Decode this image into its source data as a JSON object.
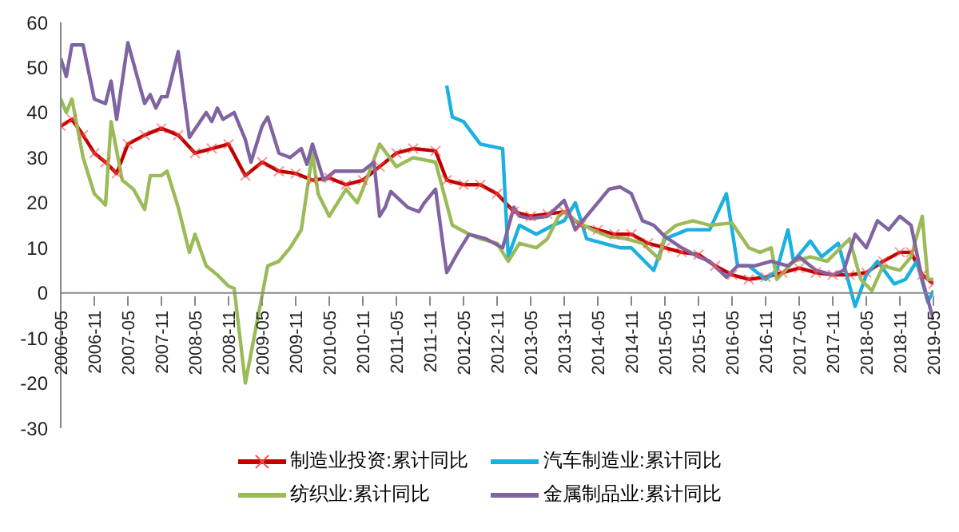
{
  "chart_data": {
    "type": "line",
    "xlim": [
      "2006-05",
      "2019-05"
    ],
    "ylim": [
      -30,
      60
    ],
    "yticks": [
      -30,
      -20,
      -10,
      0,
      10,
      20,
      30,
      40,
      50,
      60
    ],
    "xticks": [
      "2006-05",
      "2006-11",
      "2007-05",
      "2007-11",
      "2008-05",
      "2008-11",
      "2009-05",
      "2009-11",
      "2010-05",
      "2010-11",
      "2011-05",
      "2011-11",
      "2012-05",
      "2012-11",
      "2013-05",
      "2013-11",
      "2014-05",
      "2014-11",
      "2015-05",
      "2015-11",
      "2016-05",
      "2016-11",
      "2017-05",
      "2017-11",
      "2018-05",
      "2018-11",
      "2019-05"
    ],
    "legend": "bottom",
    "series": [
      {
        "name": "制造业投资:累计同比",
        "color": "#c00000",
        "marker": "cross",
        "x": [
          "2006-05",
          "2006-07",
          "2006-09",
          "2006-11",
          "2007-01",
          "2007-03",
          "2007-05",
          "2007-08",
          "2007-11",
          "2008-02",
          "2008-05",
          "2008-08",
          "2008-11",
          "2009-02",
          "2009-05",
          "2009-08",
          "2009-11",
          "2010-02",
          "2010-05",
          "2010-08",
          "2010-11",
          "2011-02",
          "2011-05",
          "2011-08",
          "2011-12",
          "2012-02",
          "2012-05",
          "2012-08",
          "2012-11",
          "2013-02",
          "2013-05",
          "2013-08",
          "2013-11",
          "2014-02",
          "2014-05",
          "2014-08",
          "2014-11",
          "2015-02",
          "2015-05",
          "2015-08",
          "2015-11",
          "2016-02",
          "2016-05",
          "2016-08",
          "2016-11",
          "2017-02",
          "2017-05",
          "2017-08",
          "2017-11",
          "2018-02",
          "2018-05",
          "2018-08",
          "2018-11",
          "2019-01",
          "2019-03",
          "2019-05"
        ],
        "values": [
          37,
          38.5,
          35,
          31,
          29,
          26.5,
          33,
          35,
          36.5,
          35,
          31,
          32,
          33,
          26,
          29,
          27,
          26.5,
          25,
          25.5,
          24,
          25,
          28,
          31,
          32,
          31.5,
          25,
          24,
          24,
          22,
          18,
          17,
          17.5,
          18,
          15,
          14,
          13,
          13,
          11,
          10,
          9,
          8.5,
          6,
          4,
          3,
          3.5,
          4.5,
          5.5,
          4.5,
          4,
          4,
          4.5,
          7,
          9,
          9,
          4,
          2
        ]
      },
      {
        "name": "汽车制造业:累计同比",
        "color": "#1ab0e0",
        "x": [
          "2012-02",
          "2012-03",
          "2012-05",
          "2012-08",
          "2012-12",
          "2013-01",
          "2013-03",
          "2013-06",
          "2013-09",
          "2013-11",
          "2014-01",
          "2014-03",
          "2014-06",
          "2014-09",
          "2014-11",
          "2015-03",
          "2015-05",
          "2015-09",
          "2016-01",
          "2016-04",
          "2016-06",
          "2016-08",
          "2016-11",
          "2017-01",
          "2017-03",
          "2017-04",
          "2017-07",
          "2017-09",
          "2017-12",
          "2018-03",
          "2018-05",
          "2018-07",
          "2018-10",
          "2018-12",
          "2019-02",
          "2019-04",
          "2019-05"
        ],
        "values": [
          46,
          39,
          38,
          33,
          32,
          8,
          15,
          13,
          15,
          16,
          20,
          12,
          11,
          10,
          10,
          5,
          12,
          14,
          14,
          22,
          6,
          6,
          3,
          5,
          14,
          7,
          11.5,
          8,
          11,
          -3,
          4,
          7,
          2,
          3,
          7,
          -2,
          0.5
        ]
      },
      {
        "name": "纺织业:累计同比",
        "color": "#9bbb59",
        "x": [
          "2006-05",
          "2006-06",
          "2006-07",
          "2006-09",
          "2006-11",
          "2007-01",
          "2007-02",
          "2007-04",
          "2007-06",
          "2007-08",
          "2007-09",
          "2007-11",
          "2007-12",
          "2008-02",
          "2008-04",
          "2008-05",
          "2008-07",
          "2008-09",
          "2008-11",
          "2008-12",
          "2009-02",
          "2009-06",
          "2009-08",
          "2009-10",
          "2009-12",
          "2010-02",
          "2010-03",
          "2010-05",
          "2010-08",
          "2010-10",
          "2010-11",
          "2011-02",
          "2011-05",
          "2011-08",
          "2011-12",
          "2012-03",
          "2012-06",
          "2012-08",
          "2012-11",
          "2013-01",
          "2013-03",
          "2013-06",
          "2013-08",
          "2013-10",
          "2013-11",
          "2014-01",
          "2014-04",
          "2014-07",
          "2014-10",
          "2015-01",
          "2015-04",
          "2015-05",
          "2015-07",
          "2015-10",
          "2016-01",
          "2016-05",
          "2016-08",
          "2016-10",
          "2016-12",
          "2017-01",
          "2017-04",
          "2017-07",
          "2017-10",
          "2018-02",
          "2018-04",
          "2018-06",
          "2018-08",
          "2018-11",
          "2019-01",
          "2019-03",
          "2019-04",
          "2019-05"
        ],
        "values": [
          43,
          40,
          43,
          30,
          22,
          19.5,
          38,
          25,
          23,
          18.5,
          26,
          26,
          27,
          19,
          9,
          13,
          6,
          4,
          1.5,
          1,
          -20,
          6,
          7,
          10,
          14,
          31,
          22,
          17,
          23,
          20,
          23,
          33,
          28,
          30,
          29,
          15,
          13,
          12,
          11,
          7,
          11,
          10,
          12,
          17,
          18,
          16,
          14,
          12.5,
          12,
          11,
          7.5,
          13,
          15,
          16,
          15,
          15.5,
          10,
          9,
          10,
          3,
          7,
          8,
          7,
          12,
          3,
          0.5,
          6,
          5,
          8,
          17,
          3,
          3
        ]
      },
      {
        "name": "金属制品业:累计同比",
        "color": "#8064a2",
        "x": [
          "2006-05",
          "2006-06",
          "2006-07",
          "2006-09",
          "2006-11",
          "2007-01",
          "2007-02",
          "2007-03",
          "2007-05",
          "2007-08",
          "2007-09",
          "2007-10",
          "2007-11",
          "2007-12",
          "2008-02",
          "2008-04",
          "2008-07",
          "2008-08",
          "2008-09",
          "2008-10",
          "2008-12",
          "2009-02",
          "2009-03",
          "2009-05",
          "2009-06",
          "2009-08",
          "2009-10",
          "2009-12",
          "2010-01",
          "2010-02",
          "2010-04",
          "2010-06",
          "2010-09",
          "2010-11",
          "2011-01",
          "2011-02",
          "2011-03",
          "2011-04",
          "2011-07",
          "2011-09",
          "2011-10",
          "2011-12",
          "2012-02",
          "2012-04",
          "2012-06",
          "2012-09",
          "2012-12",
          "2013-02",
          "2013-03",
          "2013-05",
          "2013-08",
          "2013-11",
          "2014-01",
          "2014-05",
          "2014-07",
          "2014-09",
          "2014-11",
          "2015-01",
          "2015-03",
          "2015-05",
          "2015-08",
          "2015-11",
          "2016-01",
          "2016-04",
          "2016-06",
          "2016-09",
          "2016-12",
          "2017-03",
          "2017-05",
          "2017-08",
          "2017-11",
          "2018-01",
          "2018-03",
          "2018-05",
          "2018-07",
          "2018-09",
          "2018-11",
          "2019-01",
          "2019-03",
          "2019-05"
        ],
        "values": [
          52,
          48,
          55,
          55,
          43,
          42,
          47,
          38.5,
          55.5,
          42,
          44,
          41,
          43.5,
          43.5,
          53.5,
          34.5,
          40,
          38,
          41,
          38.5,
          40,
          34,
          29,
          37,
          39,
          31,
          30,
          32,
          28.5,
          33,
          25,
          27,
          27,
          27,
          29,
          17,
          19,
          22.5,
          19,
          18,
          20,
          23,
          4.5,
          9,
          13,
          12,
          10,
          19,
          17,
          16.5,
          17,
          20.5,
          14,
          20,
          23,
          23.5,
          22,
          16,
          15,
          12.5,
          10,
          8,
          7,
          3.5,
          6,
          6,
          7,
          6,
          8,
          5,
          4,
          5,
          13,
          10,
          16,
          14,
          17,
          15,
          3,
          -6
        ]
      }
    ]
  }
}
